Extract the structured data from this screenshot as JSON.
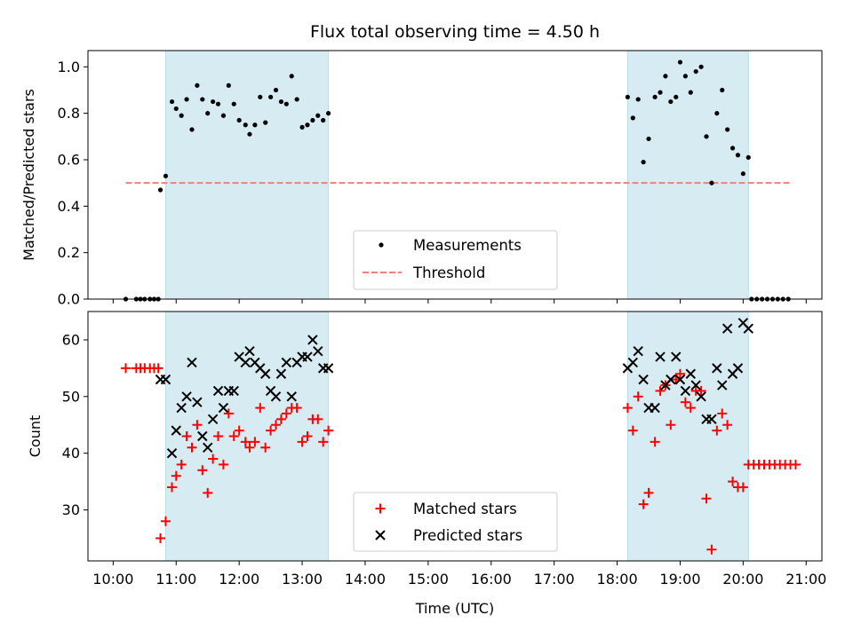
{
  "chart_data": {
    "title": "Flux total observing time = 4.50 h",
    "xlabel": "Time (UTC)",
    "x_ticks": [
      "10:00",
      "11:00",
      "12:00",
      "13:00",
      "14:00",
      "15:00",
      "16:00",
      "17:00",
      "18:00",
      "19:00",
      "20:00",
      "21:00"
    ],
    "xlim": [
      "09:36",
      "21:15"
    ],
    "shaded_intervals": [
      [
        "10:50",
        "13:25"
      ],
      [
        "18:10",
        "20:05"
      ]
    ],
    "shade_color": "#add8e6",
    "panels": [
      {
        "type": "scatter",
        "ylabel": "Matched/Predicted stars",
        "ylim": [
          0,
          1.07
        ],
        "y_ticks": [
          "0.0",
          "0.2",
          "0.4",
          "0.6",
          "0.8",
          "1.0"
        ],
        "legend_position": "lower center",
        "series": [
          {
            "name": "Measurements",
            "marker": "dot",
            "color": "#000000",
            "points": [
              [
                "10:12",
                0
              ],
              [
                "10:22",
                0
              ],
              [
                "10:26",
                0
              ],
              [
                "10:30",
                0
              ],
              [
                "10:35",
                0
              ],
              [
                "10:39",
                0
              ],
              [
                "10:43",
                0
              ],
              [
                "10:45",
                0.47
              ],
              [
                "10:50",
                0.53
              ],
              [
                "10:56",
                0.85
              ],
              [
                "11:00",
                0.82
              ],
              [
                "11:05",
                0.79
              ],
              [
                "11:10",
                0.86
              ],
              [
                "11:15",
                0.73
              ],
              [
                "11:20",
                0.92
              ],
              [
                "11:25",
                0.86
              ],
              [
                "11:30",
                0.8
              ],
              [
                "11:35",
                0.85
              ],
              [
                "11:40",
                0.84
              ],
              [
                "11:45",
                0.79
              ],
              [
                "11:50",
                0.92
              ],
              [
                "11:55",
                0.84
              ],
              [
                "12:00",
                0.77
              ],
              [
                "12:06",
                0.75
              ],
              [
                "12:10",
                0.71
              ],
              [
                "12:15",
                0.75
              ],
              [
                "12:20",
                0.87
              ],
              [
                "12:25",
                0.76
              ],
              [
                "12:30",
                0.87
              ],
              [
                "12:35",
                0.9
              ],
              [
                "12:40",
                0.85
              ],
              [
                "12:45",
                0.84
              ],
              [
                "12:50",
                0.96
              ],
              [
                "12:55",
                0.86
              ],
              [
                "13:00",
                0.74
              ],
              [
                "13:05",
                0.75
              ],
              [
                "13:10",
                0.77
              ],
              [
                "13:15",
                0.79
              ],
              [
                "13:20",
                0.77
              ],
              [
                "13:25",
                0.8
              ],
              [
                "18:10",
                0.87
              ],
              [
                "18:15",
                0.78
              ],
              [
                "18:20",
                0.86
              ],
              [
                "18:25",
                0.59
              ],
              [
                "18:30",
                0.69
              ],
              [
                "18:36",
                0.87
              ],
              [
                "18:41",
                0.89
              ],
              [
                "18:46",
                0.96
              ],
              [
                "18:51",
                0.85
              ],
              [
                "18:56",
                0.87
              ],
              [
                "19:00",
                1.02
              ],
              [
                "19:05",
                0.96
              ],
              [
                "19:10",
                0.89
              ],
              [
                "19:15",
                0.98
              ],
              [
                "19:20",
                1.0
              ],
              [
                "19:25",
                0.7
              ],
              [
                "19:30",
                0.5
              ],
              [
                "19:35",
                0.8
              ],
              [
                "19:40",
                0.9
              ],
              [
                "19:45",
                0.73
              ],
              [
                "19:50",
                0.65
              ],
              [
                "19:55",
                0.62
              ],
              [
                "20:00",
                0.54
              ],
              [
                "20:05",
                0.61
              ],
              [
                "20:08",
                0
              ],
              [
                "20:13",
                0
              ],
              [
                "20:18",
                0
              ],
              [
                "20:23",
                0
              ],
              [
                "20:28",
                0
              ],
              [
                "20:33",
                0
              ],
              [
                "20:38",
                0
              ],
              [
                "20:43",
                0
              ]
            ]
          },
          {
            "name": "Threshold",
            "style": "dashed",
            "color": "#f08080",
            "points": [
              [
                "10:12",
                0.5
              ],
              [
                "20:45",
                0.5
              ]
            ]
          }
        ]
      },
      {
        "type": "scatter",
        "ylabel": "Count",
        "ylim": [
          21,
          65
        ],
        "y_ticks": [
          "30",
          "40",
          "50",
          "60"
        ],
        "legend_position": "lower center",
        "series": [
          {
            "name": "Matched stars",
            "marker": "plus",
            "color": "#ff0000",
            "points": [
              [
                "10:12",
                55
              ],
              [
                "10:22",
                55
              ],
              [
                "10:26",
                55
              ],
              [
                "10:30",
                55
              ],
              [
                "10:35",
                55
              ],
              [
                "10:39",
                55
              ],
              [
                "10:43",
                55
              ],
              [
                "10:45",
                25
              ],
              [
                "10:50",
                28
              ],
              [
                "10:56",
                34
              ],
              [
                "11:00",
                36
              ],
              [
                "11:05",
                38
              ],
              [
                "11:10",
                43
              ],
              [
                "11:15",
                41
              ],
              [
                "11:20",
                45
              ],
              [
                "11:25",
                37
              ],
              [
                "11:30",
                33
              ],
              [
                "11:35",
                39
              ],
              [
                "11:40",
                43
              ],
              [
                "11:45",
                38
              ],
              [
                "11:50",
                47
              ],
              [
                "11:55",
                43
              ],
              [
                "12:00",
                44
              ],
              [
                "12:06",
                42
              ],
              [
                "12:10",
                41
              ],
              [
                "12:15",
                42
              ],
              [
                "12:20",
                48
              ],
              [
                "12:25",
                41
              ],
              [
                "12:30",
                44
              ],
              [
                "12:35",
                45
              ],
              [
                "12:40",
                46
              ],
              [
                "12:45",
                47
              ],
              [
                "12:50",
                48
              ],
              [
                "12:55",
                48
              ],
              [
                "13:00",
                42
              ],
              [
                "13:05",
                43
              ],
              [
                "13:10",
                46
              ],
              [
                "13:15",
                46
              ],
              [
                "13:20",
                42
              ],
              [
                "13:25",
                44
              ],
              [
                "18:10",
                48
              ],
              [
                "18:15",
                44
              ],
              [
                "18:20",
                50
              ],
              [
                "18:25",
                31
              ],
              [
                "18:30",
                33
              ],
              [
                "18:36",
                42
              ],
              [
                "18:41",
                51
              ],
              [
                "18:46",
                52
              ],
              [
                "18:51",
                45
              ],
              [
                "18:56",
                53
              ],
              [
                "19:00",
                54
              ],
              [
                "19:05",
                49
              ],
              [
                "19:10",
                48
              ],
              [
                "19:15",
                51
              ],
              [
                "19:20",
                51
              ],
              [
                "19:25",
                32
              ],
              [
                "19:30",
                23
              ],
              [
                "19:35",
                44
              ],
              [
                "19:40",
                47
              ],
              [
                "19:45",
                45
              ],
              [
                "19:50",
                35
              ],
              [
                "19:55",
                34
              ],
              [
                "20:00",
                34
              ],
              [
                "20:05",
                38
              ],
              [
                "20:10",
                38
              ],
              [
                "20:15",
                38
              ],
              [
                "20:20",
                38
              ],
              [
                "20:25",
                38
              ],
              [
                "20:30",
                38
              ],
              [
                "20:35",
                38
              ],
              [
                "20:40",
                38
              ],
              [
                "20:45",
                38
              ],
              [
                "20:50",
                38
              ]
            ]
          },
          {
            "name": "Predicted stars",
            "marker": "x",
            "color": "#000000",
            "points": [
              [
                "10:45",
                53
              ],
              [
                "10:50",
                53
              ],
              [
                "10:56",
                40
              ],
              [
                "11:00",
                44
              ],
              [
                "11:05",
                48
              ],
              [
                "11:10",
                50
              ],
              [
                "11:15",
                56
              ],
              [
                "11:20",
                49
              ],
              [
                "11:25",
                43
              ],
              [
                "11:30",
                41
              ],
              [
                "11:35",
                46
              ],
              [
                "11:40",
                51
              ],
              [
                "11:45",
                48
              ],
              [
                "11:50",
                51
              ],
              [
                "11:55",
                51
              ],
              [
                "12:00",
                57
              ],
              [
                "12:06",
                56
              ],
              [
                "12:10",
                58
              ],
              [
                "12:15",
                56
              ],
              [
                "12:20",
                55
              ],
              [
                "12:25",
                54
              ],
              [
                "12:30",
                51
              ],
              [
                "12:35",
                50
              ],
              [
                "12:40",
                54
              ],
              [
                "12:45",
                56
              ],
              [
                "12:50",
                50
              ],
              [
                "12:55",
                56
              ],
              [
                "13:00",
                57
              ],
              [
                "13:05",
                57
              ],
              [
                "13:10",
                60
              ],
              [
                "13:15",
                58
              ],
              [
                "13:20",
                55
              ],
              [
                "13:25",
                55
              ],
              [
                "18:10",
                55
              ],
              [
                "18:15",
                56
              ],
              [
                "18:20",
                58
              ],
              [
                "18:25",
                53
              ],
              [
                "18:30",
                48
              ],
              [
                "18:36",
                48
              ],
              [
                "18:41",
                57
              ],
              [
                "18:46",
                52
              ],
              [
                "18:51",
                53
              ],
              [
                "18:56",
                57
              ],
              [
                "19:00",
                53
              ],
              [
                "19:05",
                51
              ],
              [
                "19:10",
                54
              ],
              [
                "19:15",
                52
              ],
              [
                "19:20",
                50
              ],
              [
                "19:25",
                46
              ],
              [
                "19:30",
                46
              ],
              [
                "19:35",
                55
              ],
              [
                "19:40",
                52
              ],
              [
                "19:45",
                62
              ],
              [
                "19:50",
                54
              ],
              [
                "19:55",
                55
              ],
              [
                "20:00",
                63
              ],
              [
                "20:05",
                62
              ]
            ]
          }
        ]
      }
    ]
  }
}
